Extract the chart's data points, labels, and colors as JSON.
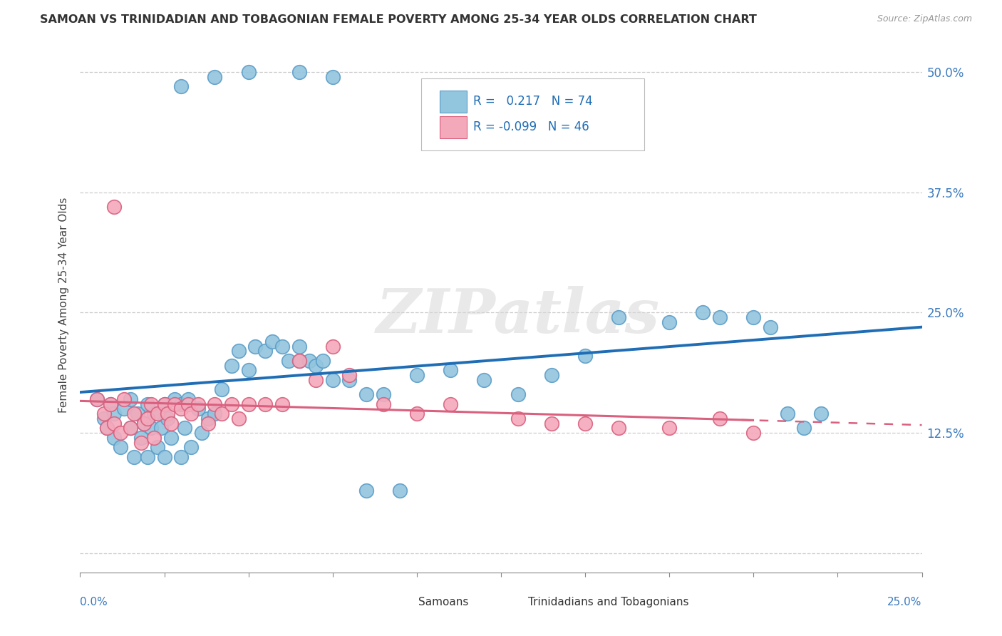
{
  "title": "SAMOAN VS TRINIDADIAN AND TOBAGONIAN FEMALE POVERTY AMONG 25-34 YEAR OLDS CORRELATION CHART",
  "source": "Source: ZipAtlas.com",
  "ylabel": "Female Poverty Among 25-34 Year Olds",
  "xlim": [
    0,
    0.25
  ],
  "ylim": [
    -0.02,
    0.535
  ],
  "blue_color": "#92c5de",
  "blue_color_edge": "#5b9dc8",
  "pink_color": "#f4a9bb",
  "pink_color_edge": "#d9607e",
  "trend_blue": "#1f6db5",
  "trend_pink": "#d9607e",
  "R_blue": 0.217,
  "N_blue": 74,
  "R_pink": -0.099,
  "N_pink": 46,
  "watermark": "ZIPatlas",
  "blue_x": [
    0.005,
    0.007,
    0.008,
    0.009,
    0.01,
    0.01,
    0.012,
    0.013,
    0.015,
    0.015,
    0.016,
    0.017,
    0.018,
    0.019,
    0.02,
    0.02,
    0.021,
    0.022,
    0.023,
    0.024,
    0.025,
    0.025,
    0.026,
    0.027,
    0.028,
    0.03,
    0.03,
    0.031,
    0.032,
    0.033,
    0.035,
    0.036,
    0.038,
    0.04,
    0.042,
    0.045,
    0.047,
    0.05,
    0.052,
    0.055,
    0.057,
    0.06,
    0.062,
    0.065,
    0.065,
    0.068,
    0.07,
    0.072,
    0.075,
    0.08,
    0.085,
    0.09,
    0.1,
    0.11,
    0.12,
    0.13,
    0.14,
    0.15,
    0.16,
    0.175,
    0.185,
    0.19,
    0.2,
    0.205,
    0.21,
    0.215,
    0.22,
    0.03,
    0.04,
    0.05,
    0.065,
    0.075,
    0.085,
    0.095
  ],
  "blue_y": [
    0.16,
    0.14,
    0.13,
    0.155,
    0.12,
    0.145,
    0.11,
    0.15,
    0.13,
    0.16,
    0.1,
    0.145,
    0.12,
    0.135,
    0.1,
    0.155,
    0.13,
    0.145,
    0.11,
    0.13,
    0.1,
    0.155,
    0.14,
    0.12,
    0.16,
    0.1,
    0.155,
    0.13,
    0.16,
    0.11,
    0.15,
    0.125,
    0.14,
    0.145,
    0.17,
    0.195,
    0.21,
    0.19,
    0.215,
    0.21,
    0.22,
    0.215,
    0.2,
    0.2,
    0.215,
    0.2,
    0.195,
    0.2,
    0.18,
    0.18,
    0.165,
    0.165,
    0.185,
    0.19,
    0.18,
    0.165,
    0.185,
    0.205,
    0.245,
    0.24,
    0.25,
    0.245,
    0.245,
    0.235,
    0.145,
    0.13,
    0.145,
    0.485,
    0.495,
    0.5,
    0.5,
    0.495,
    0.065,
    0.065
  ],
  "pink_x": [
    0.005,
    0.007,
    0.008,
    0.009,
    0.01,
    0.012,
    0.013,
    0.015,
    0.016,
    0.018,
    0.019,
    0.02,
    0.021,
    0.022,
    0.023,
    0.025,
    0.026,
    0.027,
    0.028,
    0.03,
    0.032,
    0.033,
    0.035,
    0.038,
    0.04,
    0.042,
    0.045,
    0.047,
    0.05,
    0.055,
    0.06,
    0.065,
    0.07,
    0.075,
    0.08,
    0.09,
    0.1,
    0.11,
    0.13,
    0.14,
    0.15,
    0.16,
    0.175,
    0.19,
    0.2,
    0.01
  ],
  "pink_y": [
    0.16,
    0.145,
    0.13,
    0.155,
    0.135,
    0.125,
    0.16,
    0.13,
    0.145,
    0.115,
    0.135,
    0.14,
    0.155,
    0.12,
    0.145,
    0.155,
    0.145,
    0.135,
    0.155,
    0.15,
    0.155,
    0.145,
    0.155,
    0.135,
    0.155,
    0.145,
    0.155,
    0.14,
    0.155,
    0.155,
    0.155,
    0.2,
    0.18,
    0.215,
    0.185,
    0.155,
    0.145,
    0.155,
    0.14,
    0.135,
    0.135,
    0.13,
    0.13,
    0.14,
    0.125,
    0.36
  ]
}
